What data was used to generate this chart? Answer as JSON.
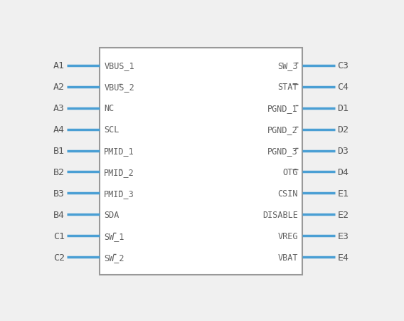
{
  "bg_color": "#f0f0f0",
  "box_color": "#999999",
  "box_fill": "#ffffff",
  "pin_color": "#4a9fd4",
  "text_color": "#606060",
  "label_color": "#555555",
  "left_pins": [
    {
      "label": "A1",
      "name": "VBUS_1",
      "overline": []
    },
    {
      "label": "A2",
      "name": "VBUS_2",
      "overline": [
        5
      ]
    },
    {
      "label": "A3",
      "name": "NC",
      "overline": []
    },
    {
      "label": "A4",
      "name": "SCL",
      "overline": []
    },
    {
      "label": "B1",
      "name": "PMID_1",
      "overline": []
    },
    {
      "label": "B2",
      "name": "PMID_2",
      "overline": [
        5
      ]
    },
    {
      "label": "B3",
      "name": "PMID_3",
      "overline": [
        5
      ]
    },
    {
      "label": "B4",
      "name": "SDA",
      "overline": []
    },
    {
      "label": "C1",
      "name": "SW_1",
      "overline": [
        3
      ]
    },
    {
      "label": "C2",
      "name": "SW_2",
      "overline": [
        3
      ]
    }
  ],
  "right_pins": [
    {
      "label": "C3",
      "name": "SW_3",
      "overline": [
        3
      ]
    },
    {
      "label": "C4",
      "name": "STAT",
      "overline": [
        2,
        3
      ]
    },
    {
      "label": "D1",
      "name": "PGND_1",
      "overline": [
        5
      ]
    },
    {
      "label": "D2",
      "name": "PGND_2",
      "overline": [
        5
      ]
    },
    {
      "label": "D3",
      "name": "PGND_3",
      "overline": [
        5
      ]
    },
    {
      "label": "D4",
      "name": "OTG",
      "overline": [
        1,
        2
      ]
    },
    {
      "label": "E1",
      "name": "CSIN",
      "overline": []
    },
    {
      "label": "E2",
      "name": "DISABLE",
      "overline": []
    },
    {
      "label": "E3",
      "name": "VREG",
      "overline": []
    },
    {
      "label": "E4",
      "name": "VBAT",
      "overline": []
    }
  ],
  "fig_w": 5.68,
  "fig_h": 4.52,
  "font_size": 8.5,
  "label_font_size": 9.5
}
